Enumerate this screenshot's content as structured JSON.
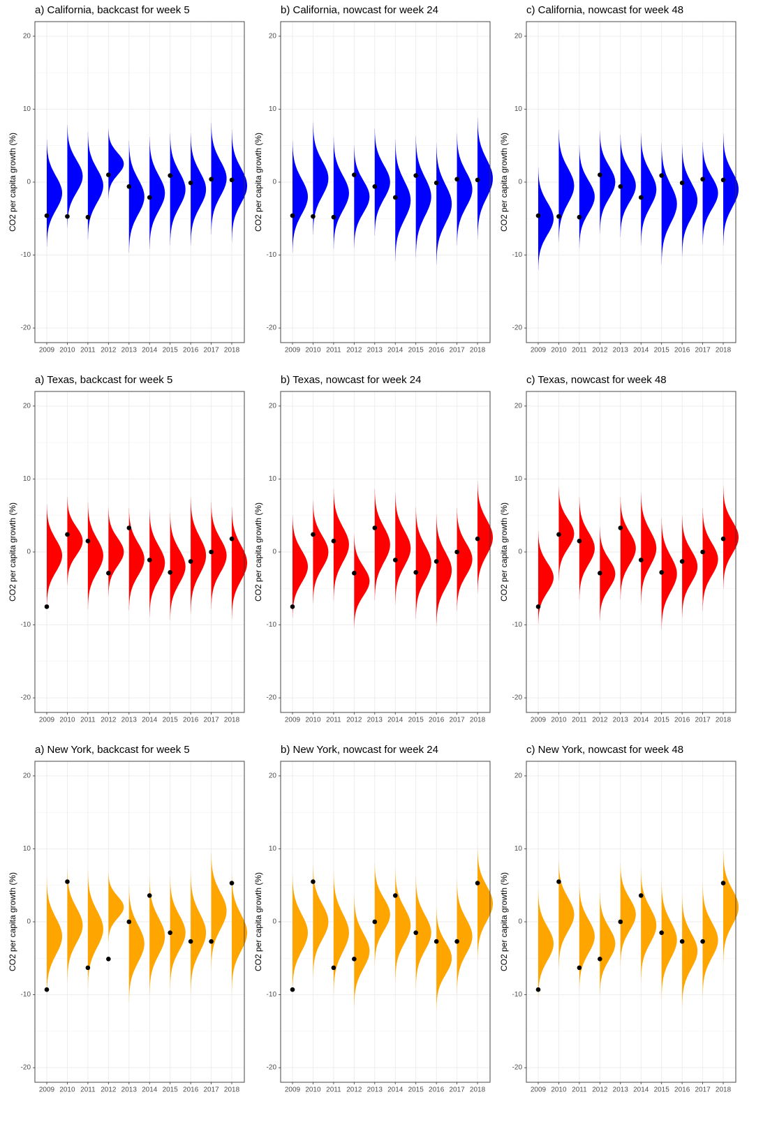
{
  "chart_data": [
    {
      "type": "violin",
      "title": "a) California, backcast for week 5",
      "y_label": "CO2 per capita growth (%)",
      "color": "#0000ff",
      "categories": [
        "2009",
        "2010",
        "2011",
        "2012",
        "2013",
        "2014",
        "2015",
        "2016",
        "2017",
        "2018"
      ],
      "values": [
        -4.6,
        -4.7,
        -4.8,
        1.0,
        -0.6,
        -2.1,
        0.9,
        -0.1,
        0.4,
        0.3
      ],
      "dist_mean": [
        -1.5,
        0.8,
        -0.5,
        2.5,
        -2,
        -1.5,
        -1,
        -1,
        0.5,
        -0.5
      ],
      "dist_sd": [
        2.3,
        2.2,
        2.3,
        1.5,
        2.4,
        2.4,
        2.4,
        2.4,
        2.4,
        2.4
      ],
      "ylim": [
        -22,
        22
      ],
      "yticks": [
        -20,
        -10,
        0,
        10,
        20
      ],
      "grid": true
    },
    {
      "type": "violin",
      "title": "b) California, nowcast for week 24",
      "y_label": "CO2 per capita growth (%)",
      "color": "#0000ff",
      "categories": [
        "2009",
        "2010",
        "2011",
        "2012",
        "2013",
        "2014",
        "2015",
        "2016",
        "2017",
        "2018"
      ],
      "values": [
        -4.6,
        -4.7,
        -4.8,
        1.0,
        -0.6,
        -2.1,
        0.9,
        -0.1,
        0.4,
        0.3
      ],
      "dist_mean": [
        -2,
        0.5,
        -1.5,
        -2,
        0,
        -2.5,
        -2,
        -3,
        -1,
        0.5
      ],
      "dist_sd": [
        2.4,
        2.4,
        2.4,
        2.2,
        2.3,
        2.6,
        2.6,
        2.6,
        2.4,
        2.6
      ],
      "ylim": [
        -22,
        22
      ],
      "yticks": [
        -20,
        -10,
        0,
        10,
        20
      ],
      "grid": true
    },
    {
      "type": "violin",
      "title": "c) California, nowcast for week 48",
      "y_label": "CO2 per capita growth (%)",
      "color": "#0000ff",
      "categories": [
        "2009",
        "2010",
        "2011",
        "2012",
        "2013",
        "2014",
        "2015",
        "2016",
        "2017",
        "2018"
      ],
      "values": [
        -4.6,
        -4.7,
        -4.8,
        1.0,
        -0.6,
        -2.1,
        0.9,
        -0.1,
        0.4,
        0.3
      ],
      "dist_mean": [
        -5,
        -0.5,
        -2,
        0,
        -0.5,
        -1,
        -3,
        -2.5,
        -1.5,
        -1
      ],
      "dist_sd": [
        2.2,
        2.4,
        2.2,
        2.2,
        2.2,
        2.4,
        2.6,
        2.4,
        2.2,
        2.4
      ],
      "ylim": [
        -22,
        22
      ],
      "yticks": [
        -20,
        -10,
        0,
        10,
        20
      ],
      "grid": true
    },
    {
      "type": "violin",
      "title": "a) Texas, backcast for week 5",
      "y_label": "CO2 per capita growth (%)",
      "color": "#ff0000",
      "categories": [
        "2009",
        "2010",
        "2011",
        "2012",
        "2013",
        "2014",
        "2015",
        "2016",
        "2017",
        "2018"
      ],
      "values": [
        -7.5,
        2.4,
        1.5,
        -2.9,
        3.3,
        -1.1,
        -2.8,
        -1.3,
        0.0,
        1.8
      ],
      "dist_mean": [
        -0.5,
        1.5,
        -0.5,
        0,
        -1,
        -1.5,
        -2,
        -0.5,
        -0.5,
        -1.5
      ],
      "dist_sd": [
        2.2,
        1.9,
        2.3,
        1.9,
        2.2,
        2.3,
        2.3,
        2.5,
        2.3,
        2.4
      ],
      "ylim": [
        -22,
        22
      ],
      "yticks": [
        -20,
        -10,
        0,
        10,
        20
      ],
      "grid": true
    },
    {
      "type": "violin",
      "title": "b) Texas, nowcast for week 24",
      "y_label": "CO2 per capita growth (%)",
      "color": "#ff0000",
      "categories": [
        "2009",
        "2010",
        "2011",
        "2012",
        "2013",
        "2014",
        "2015",
        "2016",
        "2017",
        "2018"
      ],
      "values": [
        -7.5,
        2.4,
        1.5,
        -2.9,
        3.3,
        -1.1,
        -2.8,
        -1.3,
        0.0,
        1.8
      ],
      "dist_mean": [
        -2,
        0,
        1,
        -4,
        1,
        0.5,
        -1.5,
        -2.5,
        -1,
        2
      ],
      "dist_sd": [
        2.2,
        2.2,
        2.4,
        2.0,
        2.4,
        2.4,
        2.4,
        2.4,
        2.2,
        2.4
      ],
      "ylim": [
        -22,
        22
      ],
      "yticks": [
        -20,
        -10,
        0,
        10,
        20
      ],
      "grid": true
    },
    {
      "type": "violin",
      "title": "c) Texas, nowcast for week 48",
      "y_label": "CO2 per capita growth (%)",
      "color": "#ff0000",
      "categories": [
        "2009",
        "2010",
        "2011",
        "2012",
        "2013",
        "2014",
        "2015",
        "2016",
        "2017",
        "2018"
      ],
      "values": [
        -7.5,
        2.4,
        1.5,
        -2.9,
        3.3,
        -1.1,
        -2.8,
        -1.3,
        0.0,
        1.8
      ],
      "dist_mean": [
        -3.5,
        2.5,
        0.5,
        -3,
        0.5,
        0.5,
        -3,
        -2,
        -1,
        2
      ],
      "dist_sd": [
        2.0,
        2.0,
        2.2,
        2.0,
        2.2,
        2.4,
        2.4,
        2.2,
        2.2,
        2.2
      ],
      "ylim": [
        -22,
        22
      ],
      "yticks": [
        -20,
        -10,
        0,
        10,
        20
      ],
      "grid": true
    },
    {
      "type": "violin",
      "title": "a) New York, backcast for week 5",
      "y_label": "CO2 per capita growth (%)",
      "color": "#ffa500",
      "categories": [
        "2009",
        "2010",
        "2011",
        "2012",
        "2013",
        "2014",
        "2015",
        "2016",
        "2017",
        "2018"
      ],
      "values": [
        -9.3,
        5.5,
        -6.3,
        -5.1,
        0.0,
        3.6,
        -1.5,
        -2.7,
        -2.7,
        5.3
      ],
      "dist_mean": [
        -2,
        -0.5,
        -1,
        2,
        -3,
        -2,
        -1.5,
        -1.5,
        1.5,
        -1.5
      ],
      "dist_sd": [
        2.5,
        2.4,
        2.5,
        1.5,
        2.5,
        2.5,
        2.4,
        2.6,
        2.5,
        2.5
      ],
      "ylim": [
        -22,
        22
      ],
      "yticks": [
        -20,
        -10,
        0,
        10,
        20
      ],
      "grid": true
    },
    {
      "type": "violin",
      "title": "b) New York, nowcast for week 24",
      "y_label": "CO2 per capita growth (%)",
      "color": "#ffa500",
      "categories": [
        "2009",
        "2010",
        "2011",
        "2012",
        "2013",
        "2014",
        "2015",
        "2016",
        "2017",
        "2018"
      ],
      "values": [
        -9.3,
        5.5,
        -6.3,
        -5.1,
        0.0,
        3.6,
        -1.5,
        -2.7,
        -2.7,
        5.3
      ],
      "dist_mean": [
        -1.5,
        0,
        -1.5,
        -4,
        1,
        -0.5,
        -1.5,
        -5,
        -2,
        2.5
      ],
      "dist_sd": [
        2.5,
        2.4,
        2.6,
        2.4,
        2.2,
        2.4,
        2.4,
        2.2,
        2.4,
        2.4
      ],
      "ylim": [
        -22,
        22
      ],
      "yticks": [
        -20,
        -10,
        0,
        10,
        20
      ],
      "grid": true
    },
    {
      "type": "violin",
      "title": "c) New York, nowcast for week 48",
      "y_label": "CO2 per capita growth (%)",
      "color": "#ffa500",
      "categories": [
        "2009",
        "2010",
        "2011",
        "2012",
        "2013",
        "2014",
        "2015",
        "2016",
        "2017",
        "2018"
      ],
      "values": [
        -9.3,
        5.5,
        -6.3,
        -5.1,
        0.0,
        3.6,
        -1.5,
        -2.7,
        -2.7,
        5.3
      ],
      "dist_mean": [
        -3,
        1,
        -2,
        -3,
        1,
        -0.5,
        -2.5,
        -4,
        -2.5,
        2
      ],
      "dist_sd": [
        2.3,
        2.3,
        2.3,
        2.2,
        2.2,
        2.4,
        2.5,
        2.4,
        2.4,
        2.4
      ],
      "ylim": [
        -22,
        22
      ],
      "yticks": [
        -20,
        -10,
        0,
        10,
        20
      ],
      "grid": true
    }
  ]
}
